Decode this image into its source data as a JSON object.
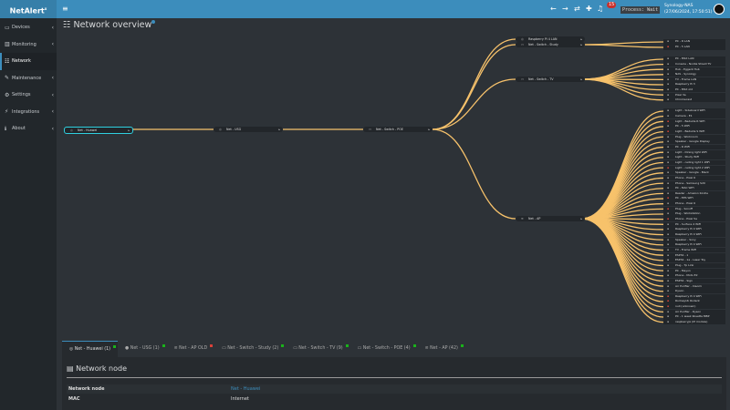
{
  "header": {
    "logo": "NetAlert",
    "logo_sup": "x",
    "notifications": "15",
    "process": "Process: Wait",
    "host": "Synology-NAS",
    "datetime": "(27/06/2024, 17:50:51)"
  },
  "sidebar": {
    "items": [
      {
        "label": "Devices",
        "icon": "laptop-icon"
      },
      {
        "label": "Monitoring",
        "icon": "chart-icon"
      },
      {
        "label": "Network",
        "icon": "network-icon"
      },
      {
        "label": "Maintenance",
        "icon": "wrench-icon"
      },
      {
        "label": "Settings",
        "icon": "gear-icon"
      },
      {
        "label": "Integrations",
        "icon": "plug-icon"
      },
      {
        "label": "About",
        "icon": "info-icon"
      }
    ]
  },
  "page_title": "Network overview",
  "colors": {
    "accent": "#3c8dbc",
    "edge": "#f7c26b",
    "root_border": "#2fd0e0"
  },
  "tree": {
    "root": "Net - Huawei",
    "usg": "Net - USG",
    "poe": "Net - Switch - POE",
    "poe_children": [
      "Raspberry Pi 4 LAN",
      "Net - Switch - Study",
      "Net - Switch - TV",
      "Net - AP"
    ],
    "study_children": [
      "PC - R LAN",
      "PC - 5 LAN"
    ],
    "tv_children": [
      "PC - MSX LAN",
      "Console - Nvidia Shield TV",
      "Hub - Eggent Hub",
      "NAS - Synology",
      "TV - Frame LAN",
      "Raspberry Pi 3",
      "PC - MSX old",
      "Pixel 3a",
      "Chromecast"
    ],
    "ap_children": [
      "Light - Sideboard WiFi",
      "Camera - E1",
      "Light - Bedside R WiFi",
      "PC - 5 WiFi",
      "Light - Bedside S WiFi",
      "Plug - Workroom",
      "Speaker - Google Display",
      "PC - R WiFi",
      "Light - Dining light WiFi",
      "Light - Study WiFi",
      "Light - ceiling light 1 WiFi",
      "Light - ceiling light 2 WiFi",
      "Speaker - Google - Black",
      "Phone - Pixel 6",
      "Phone - Samsung S20",
      "PC - MAC WiFi",
      "Reader - Amazon Kindle",
      "PC - EPS WiFi",
      "Phone - Pixel 6",
      "Plug - Sonoff",
      "Plug - Workstation",
      "Phone - Pixel 5a",
      "PC - Surface 4 WiFi",
      "Raspberry Pi 4 WiFi",
      "Raspberry Pi 4 WiFi",
      "Speaker - Sony",
      "Raspberry Pi 4 WiFi",
      "TV - Frame WiFi",
      "ESP32 - 1",
      "ESP32 - 1a - Laser Toy",
      "Plug - Tp Link",
      "PC - Mayon",
      "Phone - Moto E2",
      "ESP32 - Sign",
      "Air Purifier - Xiaomi",
      "Dyson",
      "Raspberry Pi 4 WiFi",
      "RodneyUk Rodent",
      "null (unknown)",
      "Air Purifier - Dyson",
      "PC - 1 week Rosetta MBP",
      "raspberrypi (IP module)"
    ]
  },
  "tabs": [
    {
      "label": "Net - Huawei (1)",
      "status": "up"
    },
    {
      "label": "Net - USG (1)",
      "status": "up"
    },
    {
      "label": "Net - AP OLD",
      "status": "down"
    },
    {
      "label": "Net - Switch - Study (2)",
      "status": "up"
    },
    {
      "label": "Net - Switch - TV (9)",
      "status": "up"
    },
    {
      "label": "Net - Switch - POE (4)",
      "status": "up"
    },
    {
      "label": "Net - AP (42)",
      "status": "up"
    }
  ],
  "panel": {
    "title": "Network node",
    "rows": [
      {
        "key": "Network node",
        "value": "Net - Huawei"
      },
      {
        "key": "MAC",
        "value": "Internet"
      }
    ]
  }
}
